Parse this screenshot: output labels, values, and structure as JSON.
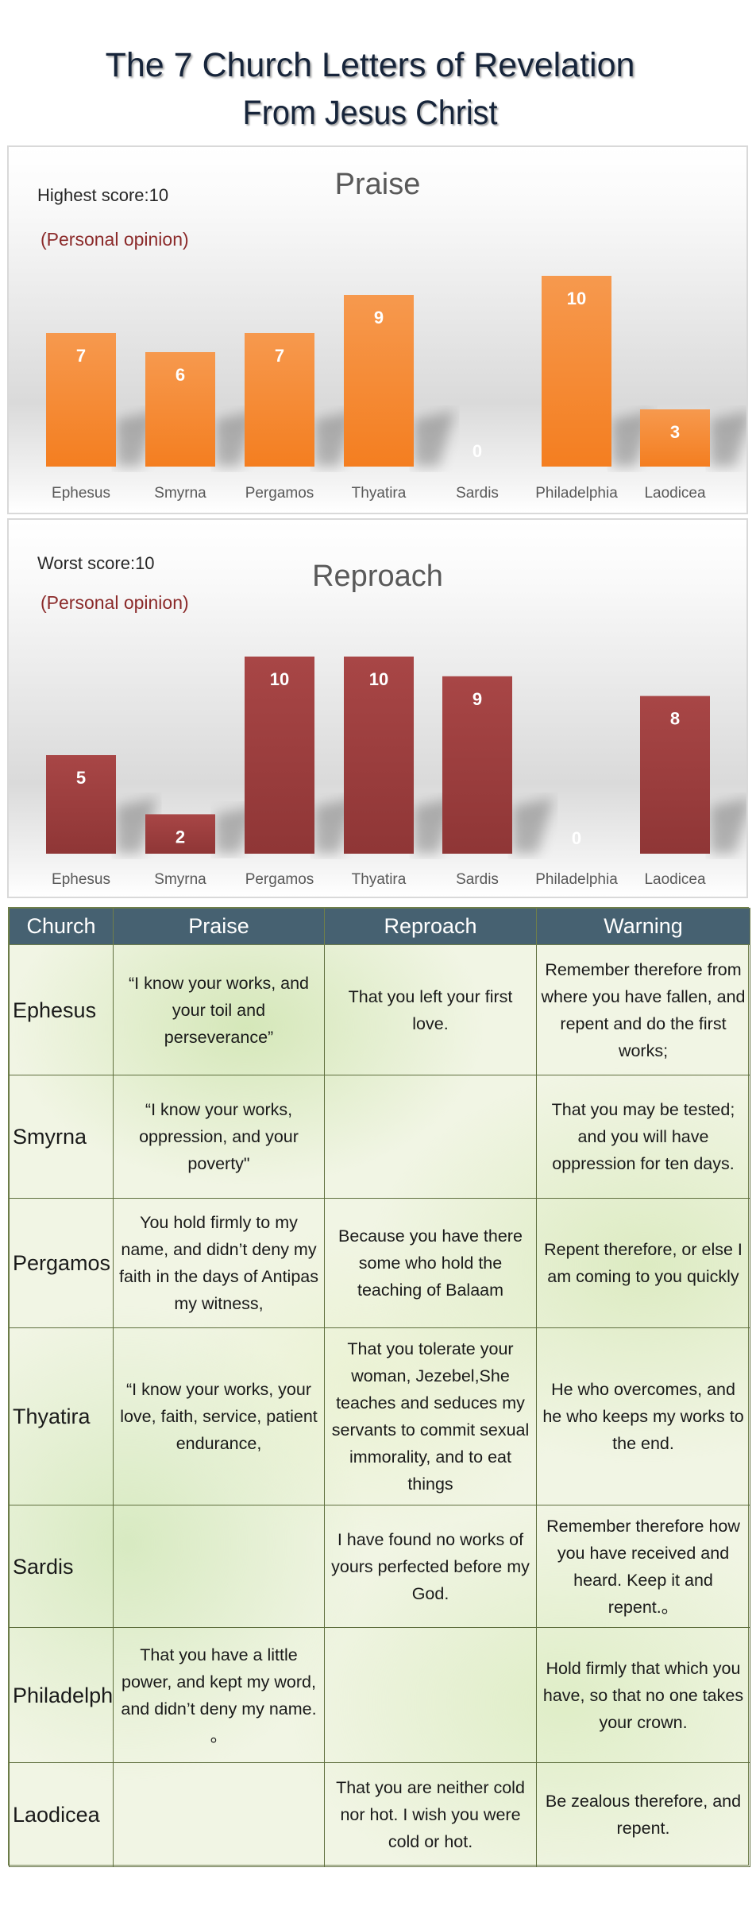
{
  "title": {
    "line1": "The 7 Church Letters of Revelation",
    "line2": "From Jesus Christ"
  },
  "chart_data": [
    {
      "type": "bar",
      "title": "Praise",
      "note": "Highest score:10",
      "opinion": "(Personal opinion)",
      "categories": [
        "Ephesus",
        "Smyrna",
        "Pergamos",
        "Thyatira",
        "Sardis",
        "Philadelphia",
        "Laodicea"
      ],
      "values": [
        7,
        6,
        7,
        9,
        0,
        10,
        3
      ],
      "ylim": [
        0,
        10
      ],
      "grid": false,
      "color": "#f47e20",
      "color_light": "#f6994e"
    },
    {
      "type": "bar",
      "title": "Reproach",
      "note": "Worst score:10",
      "opinion": "(Personal opinion)",
      "categories": [
        "Ephesus",
        "Smyrna",
        "Pergamos",
        "Thyatira",
        "Sardis",
        "Philadelphia",
        "Laodicea"
      ],
      "values": [
        5,
        2,
        10,
        10,
        9,
        0,
        8
      ],
      "ylim": [
        0,
        10
      ],
      "grid": false,
      "color": "#8f3636",
      "color_light": "#a84646"
    }
  ],
  "table": {
    "headers": [
      "Church",
      "Praise",
      "Reproach",
      "Warning"
    ],
    "header_color": "#466171",
    "rows": [
      {
        "church": "Ephesus",
        "praise": "“I know your works, and your toil and perseverance”",
        "reproach": "That you left your first love.",
        "warning": "Remember therefore from where you have fallen, and repent and do the first works;"
      },
      {
        "church": "Smyrna",
        "praise": "“I know your works, oppression, and your poverty\"",
        "reproach": "",
        "warning": "That you may be tested; and you will have oppression for ten days."
      },
      {
        "church": "Pergamos",
        "praise": "You hold firmly to my name, and didn’t deny my faith in the days of Antipas my witness,",
        "reproach": "Because you have there some who hold the teaching of Balaam",
        "warning": "Repent therefore, or else I am coming to you quickly"
      },
      {
        "church": "Thyatira",
        "praise": "“I know your works, your love, faith, service, patient endurance,",
        "reproach": "That you tolerate your woman, Jezebel,She teaches and seduces my servants to commit sexual immorality, and to eat things",
        "warning": "He who overcomes, and he who keeps my works to the end."
      },
      {
        "church": "Sardis",
        "praise": "",
        "reproach": "I have found no works of yours perfected before my God.",
        "warning": "Remember therefore how you have received and heard. Keep it and repent.。"
      },
      {
        "church": "Philadelphia",
        "praise": "That you have a little power, and kept my word, and didn’t deny my name. 。",
        "reproach": "",
        "warning": "Hold firmly that which you have, so that no one takes your crown."
      },
      {
        "church": "Laodicea",
        "praise": "",
        "reproach": "That you are neither cold nor hot. I wish you were cold or hot.",
        "warning": "Be zealous therefore, and repent."
      }
    ]
  }
}
